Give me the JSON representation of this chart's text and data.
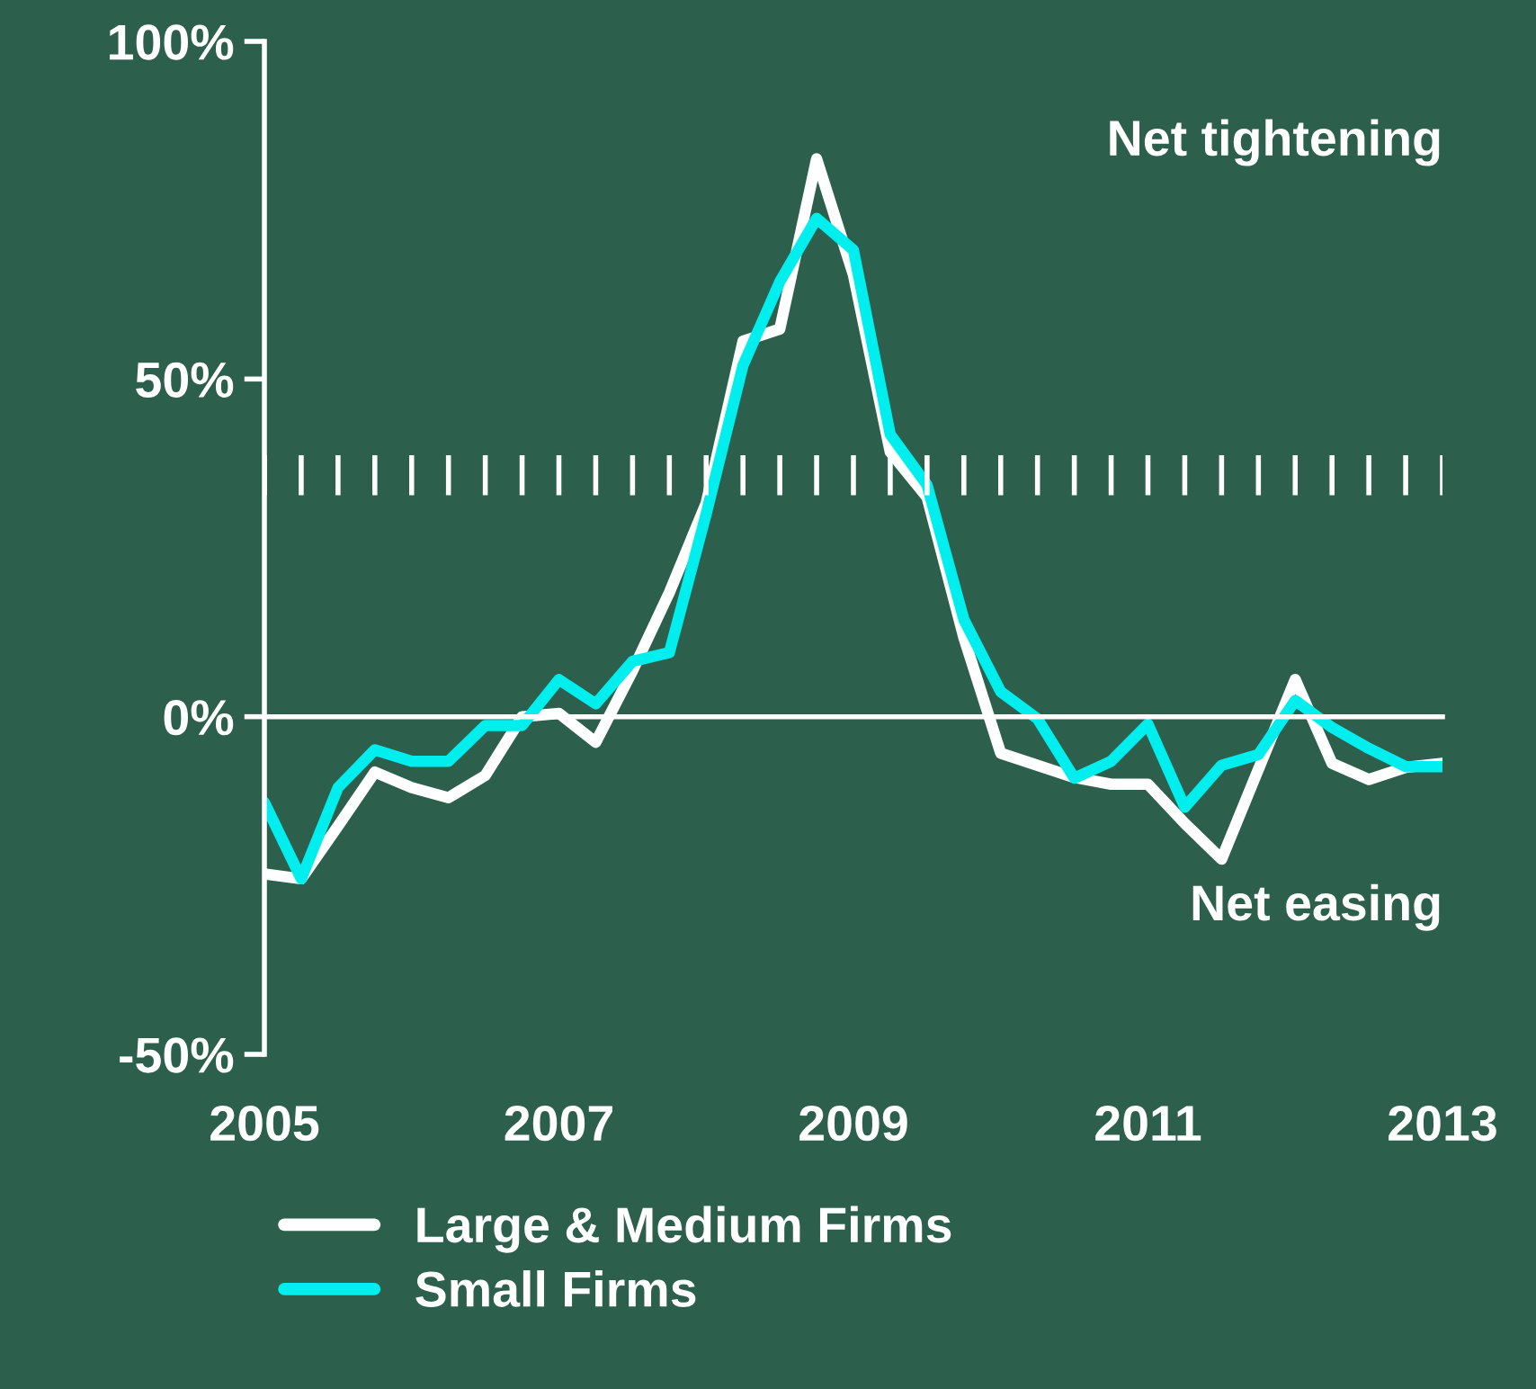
{
  "chart_data": {
    "type": "line",
    "x": [
      2005,
      2005.25,
      2005.5,
      2005.75,
      2006,
      2006.25,
      2006.5,
      2006.75,
      2007,
      2007.25,
      2007.5,
      2007.75,
      2008,
      2008.25,
      2008.5,
      2008.75,
      2009,
      2009.25,
      2009.5,
      2009.75,
      2010,
      2010.25,
      2010.5,
      2010.75,
      2011,
      2011.25,
      2011.5,
      2011.75,
      2012,
      2012.25,
      2012.5,
      2012.75,
      2013
    ],
    "series": [
      {
        "name": "Large & Medium Firms",
        "color": "#ffffff",
        "values": [
          -23.3,
          -24,
          -16.2,
          -8.2,
          -10.5,
          -12,
          -8.7,
          0,
          0.5,
          -3.8,
          6.8,
          18.4,
          31.6,
          55.6,
          57.4,
          82.6,
          65.4,
          39.2,
          32.5,
          11.7,
          -5.4,
          -7.2,
          -9,
          -10,
          -10,
          -15.8,
          -21.1,
          -7.8,
          5.5,
          -6.9,
          -9.3,
          -7.5,
          -6.9
        ]
      },
      {
        "name": "Small Firms",
        "color": "#00eeee",
        "values": [
          -12.7,
          -24,
          -10.5,
          -4.9,
          -6.6,
          -6.6,
          -1.3,
          -1.3,
          5.5,
          1.9,
          8.2,
          9.5,
          30,
          52,
          64.4,
          73.8,
          69.1,
          41.8,
          34.3,
          14.4,
          3.7,
          -0.3,
          -9.1,
          -6.6,
          -1.1,
          -13.4,
          -7.2,
          -5.6,
          2.4,
          -1.6,
          -4.7,
          -7.4,
          -7.4
        ]
      }
    ],
    "xlim": [
      2005,
      2013
    ],
    "xticks": [
      2005,
      2007,
      2009,
      2011,
      2013
    ],
    "ylim": [
      -50,
      100
    ],
    "yticks": [
      {
        "value": -50,
        "label": "-50%"
      },
      {
        "value": 0,
        "label": "0%"
      },
      {
        "value": 50,
        "label": "50%"
      },
      {
        "value": 100,
        "label": "100%"
      }
    ],
    "annotations": [
      "Net tightening",
      "Net easing"
    ],
    "legend": "bottom",
    "marker": "none",
    "line_style": "solid"
  }
}
